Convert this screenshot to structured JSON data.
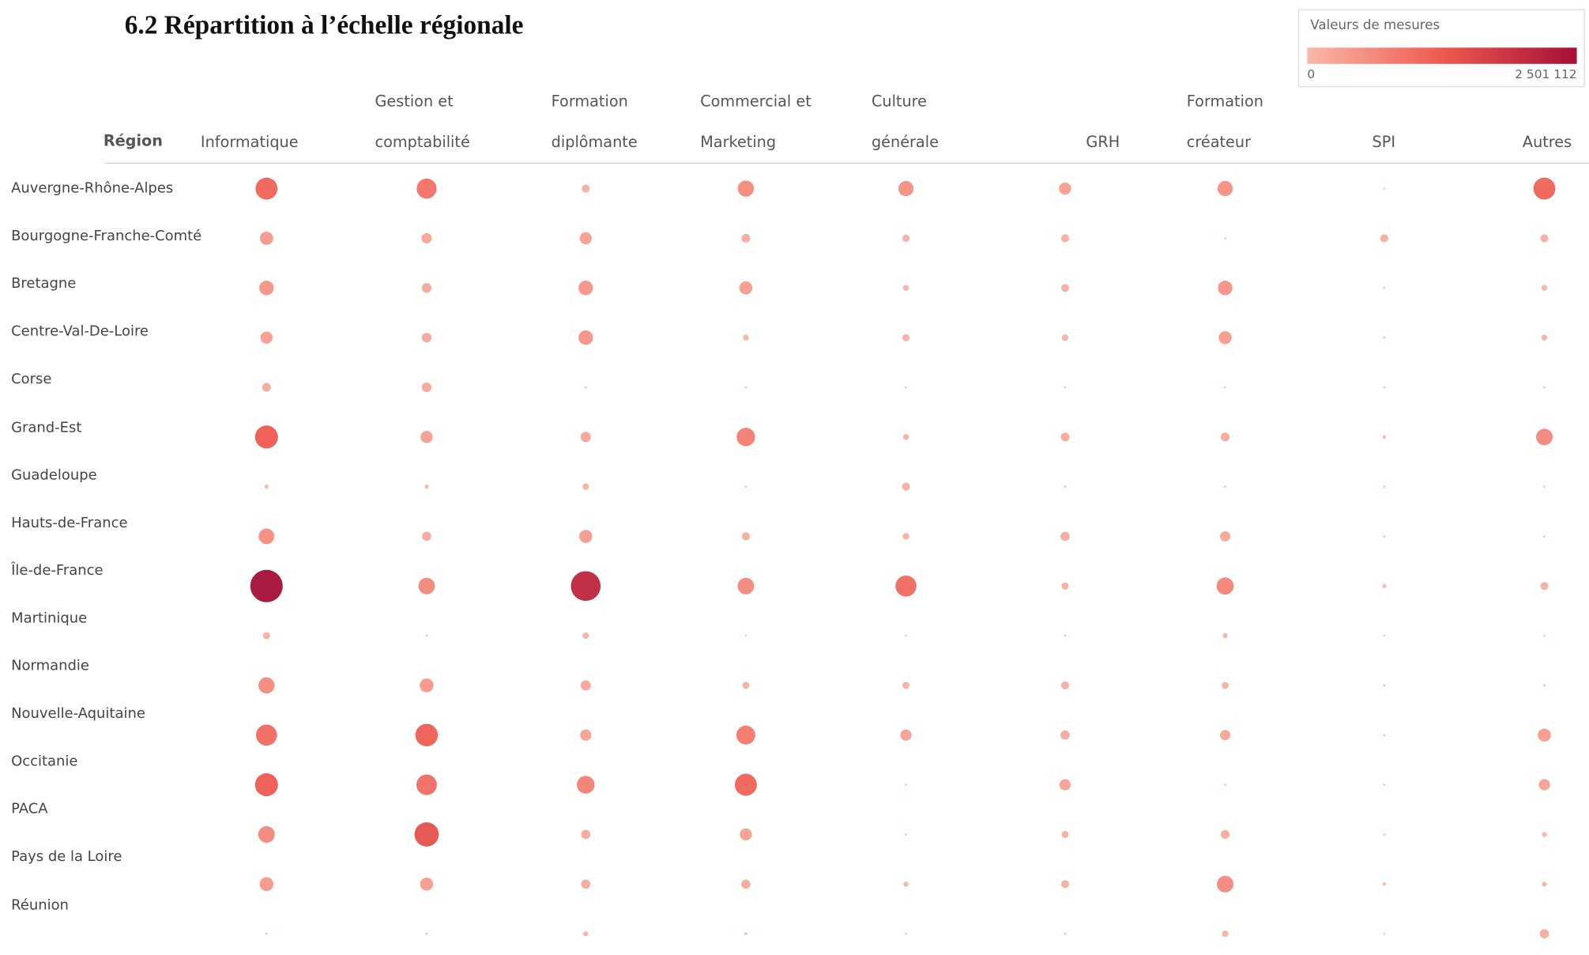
{
  "chart_data": {
    "type": "bubble_matrix",
    "title": "6.2 Répartition à l’échelle régionale",
    "row_header": "Région",
    "categories": [
      "Informatique",
      "Gestion et\ncomptabilité",
      "Formation\ndiplômante",
      "Commercial et\nMarketing",
      "Culture\ngénérale",
      "GRH",
      "Formation\ncréateur",
      "SPI",
      "Autres"
    ],
    "regions": [
      "Auvergne-Rhône-Alpes",
      "Bourgogne-Franche-Comté",
      "Bretagne",
      "Centre-Val-De-Loire",
      "Corse",
      "Grand-Est",
      "Guadeloupe",
      "Hauts-de-France",
      "Île-de-France",
      "Martinique",
      "Normandie",
      "Nouvelle-Aquitaine",
      "Occitanie",
      "PACA",
      "Pays de la Loire",
      "Réunion"
    ],
    "values": [
      [
        1150000,
        950000,
        150000,
        620000,
        550000,
        350000,
        550000,
        10000,
        1150000
      ],
      [
        420000,
        250000,
        350000,
        180000,
        120000,
        150000,
        10000,
        150000,
        150000
      ],
      [
        500000,
        220000,
        500000,
        400000,
        80000,
        150000,
        500000,
        10000,
        80000
      ],
      [
        350000,
        220000,
        500000,
        80000,
        120000,
        100000,
        400000,
        10000,
        80000
      ],
      [
        180000,
        220000,
        10000,
        10000,
        10000,
        10000,
        10000,
        10000,
        10000
      ],
      [
        1250000,
        350000,
        250000,
        800000,
        80000,
        180000,
        180000,
        30000,
        650000
      ],
      [
        40000,
        40000,
        100000,
        10000,
        150000,
        10000,
        10000,
        10000,
        10000
      ],
      [
        580000,
        200000,
        400000,
        150000,
        100000,
        200000,
        250000,
        10000,
        10000
      ],
      [
        2501112,
        650000,
        2100000,
        650000,
        1050000,
        120000,
        700000,
        40000,
        150000
      ],
      [
        120000,
        10000,
        100000,
        10000,
        10000,
        10000,
        60000,
        10000,
        10000
      ],
      [
        620000,
        450000,
        250000,
        120000,
        120000,
        150000,
        120000,
        10000,
        10000
      ],
      [
        1050000,
        1200000,
        300000,
        850000,
        300000,
        200000,
        250000,
        10000,
        400000
      ],
      [
        1250000,
        1000000,
        750000,
        1150000,
        10000,
        300000,
        10000,
        10000,
        300000
      ],
      [
        650000,
        1400000,
        200000,
        350000,
        10000,
        120000,
        180000,
        10000,
        60000
      ],
      [
        450000,
        400000,
        200000,
        200000,
        60000,
        150000,
        650000,
        30000,
        60000
      ],
      [
        10000,
        10000,
        60000,
        20000,
        10000,
        10000,
        100000,
        10000,
        200000
      ]
    ],
    "color_scale": {
      "title": "Valeurs de mesures",
      "colors": [
        "#f9b8a8",
        "#ee5a50",
        "#a60e36"
      ],
      "min": 0,
      "max": {
        "value": 2501112,
        "label": "2 501 112"
      }
    }
  }
}
